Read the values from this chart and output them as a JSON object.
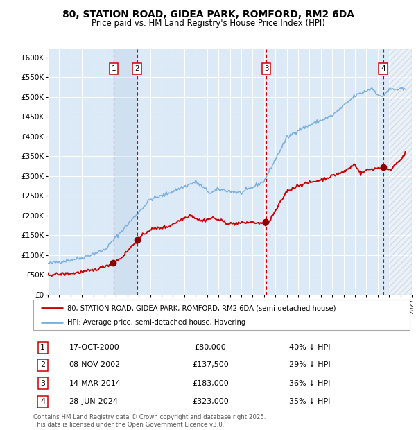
{
  "title": "80, STATION ROAD, GIDEA PARK, ROMFORD, RM2 6DA",
  "subtitle": "Price paid vs. HM Land Registry's House Price Index (HPI)",
  "xlim": [
    1995.0,
    2027.0
  ],
  "ylim": [
    0,
    620000
  ],
  "yticks": [
    0,
    50000,
    100000,
    150000,
    200000,
    250000,
    300000,
    350000,
    400000,
    450000,
    500000,
    550000,
    600000
  ],
  "background_color": "#ffffff",
  "plot_bg_color": "#dce9f7",
  "grid_color": "#ffffff",
  "transactions": [
    {
      "num": 1,
      "date": "17-OCT-2000",
      "year": 2000.79,
      "price": 80000,
      "hpi_pct": "40% ↓ HPI"
    },
    {
      "num": 2,
      "date": "08-NOV-2002",
      "year": 2002.85,
      "price": 137500,
      "hpi_pct": "29% ↓ HPI"
    },
    {
      "num": 3,
      "date": "14-MAR-2014",
      "year": 2014.2,
      "price": 183000,
      "hpi_pct": "36% ↓ HPI"
    },
    {
      "num": 4,
      "date": "28-JUN-2024",
      "year": 2024.49,
      "price": 323000,
      "hpi_pct": "35% ↓ HPI"
    }
  ],
  "hpi_line_color": "#7aaedb",
  "price_line_color": "#cc0000",
  "footnote": "Contains HM Land Registry data © Crown copyright and database right 2025.\nThis data is licensed under the Open Government Licence v3.0.",
  "legend1": "80, STATION ROAD, GIDEA PARK, ROMFORD, RM2 6DA (semi-detached house)",
  "legend2": "HPI: Average price, semi-detached house, Havering"
}
